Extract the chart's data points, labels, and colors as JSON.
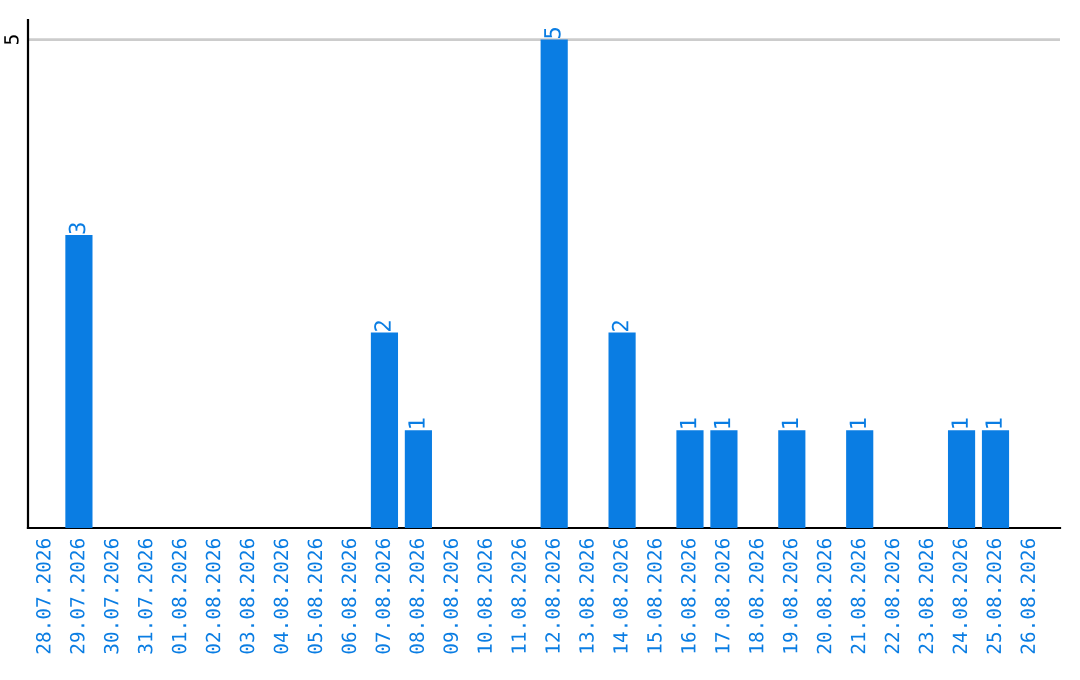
{
  "chart_data": {
    "type": "bar",
    "categories": [
      "28.07.2026",
      "29.07.2026",
      "30.07.2026",
      "31.07.2026",
      "01.08.2026",
      "02.08.2026",
      "03.08.2026",
      "04.08.2026",
      "05.08.2026",
      "06.08.2026",
      "07.08.2026",
      "08.08.2026",
      "09.08.2026",
      "10.08.2026",
      "11.08.2026",
      "12.08.2026",
      "13.08.2026",
      "14.08.2026",
      "15.08.2026",
      "16.08.2026",
      "17.08.2026",
      "18.08.2026",
      "19.08.2026",
      "20.08.2026",
      "21.08.2026",
      "22.08.2026",
      "23.08.2026",
      "24.08.2026",
      "25.08.2026",
      "26.08.2026"
    ],
    "values": [
      0,
      3,
      0,
      0,
      0,
      0,
      0,
      0,
      0,
      0,
      2,
      1,
      0,
      0,
      0,
      5,
      0,
      2,
      0,
      1,
      1,
      0,
      1,
      0,
      1,
      0,
      0,
      1,
      1,
      0
    ],
    "value_labels": [
      null,
      "3",
      null,
      null,
      null,
      null,
      null,
      null,
      null,
      null,
      "2",
      "1",
      null,
      null,
      null,
      "5",
      null,
      "2",
      null,
      "1",
      "1",
      null,
      "1",
      null,
      "1",
      null,
      null,
      "1",
      "1",
      null
    ],
    "color": "#0a7de3",
    "ylim": [
      0,
      5.2
    ],
    "yticks": [
      5
    ],
    "grid": "y"
  }
}
